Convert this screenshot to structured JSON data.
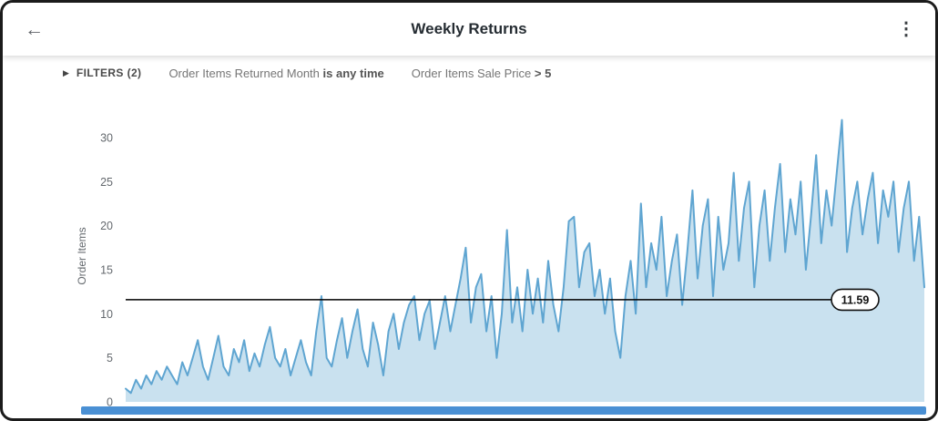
{
  "header": {
    "title": "Weekly Returns",
    "back_icon": "←",
    "menu_icon": "⋮"
  },
  "filters": {
    "expand_icon": "▶",
    "toggle_label": "FILTERS (2)",
    "clauses": [
      {
        "field": "Order Items Returned Month",
        "condition": "is any time"
      },
      {
        "field": "Order Items Sale Price",
        "condition": "> 5"
      }
    ]
  },
  "colors": {
    "scrollbar_blue": "#4a90d4",
    "header_text": "#262d33"
  },
  "chart_data": {
    "type": "area",
    "title": "Weekly Returns",
    "xlabel": "",
    "ylabel": "Order Items",
    "x_unit": "week-index",
    "yticks": [
      0,
      5,
      10,
      15,
      20,
      25,
      30
    ],
    "ylim": [
      0,
      33.3
    ],
    "grid": false,
    "legend": false,
    "area_color": "#c9e1ef",
    "line_color": "#5fa5d1",
    "reference_line": {
      "value": 11.59,
      "label": "11.59",
      "color": "#000000"
    },
    "values": [
      1.5,
      1,
      2.5,
      1.5,
      3,
      2,
      3.5,
      2.5,
      4,
      3,
      2,
      4.5,
      3,
      5,
      7,
      4,
      2.5,
      5,
      7.5,
      4,
      3,
      6,
      4.5,
      7,
      3.5,
      5.5,
      4,
      6.5,
      8.5,
      5,
      4,
      6,
      3,
      5,
      7,
      4.5,
      3,
      8,
      12,
      5,
      4,
      7,
      9.5,
      5,
      8,
      10.5,
      6,
      4,
      9,
      6.5,
      3,
      8,
      10,
      6,
      9,
      11,
      12,
      7,
      10,
      11.5,
      6,
      9,
      12,
      8,
      11,
      14,
      17.5,
      9,
      13,
      14.5,
      8,
      12,
      5,
      10,
      19.5,
      9,
      13,
      8,
      15,
      10,
      14,
      9,
      16,
      11,
      8,
      13,
      20.5,
      21,
      13,
      17,
      18,
      12,
      15,
      10,
      14,
      8,
      5,
      12,
      16,
      10,
      22.5,
      13,
      18,
      15,
      21,
      12,
      16,
      19,
      11,
      17,
      24,
      14,
      20,
      23,
      12,
      21,
      15,
      18,
      26,
      16,
      22,
      25,
      13,
      20,
      24,
      16,
      22,
      27,
      17,
      23,
      19,
      25,
      15,
      21,
      28,
      18,
      24,
      20,
      26,
      32,
      17,
      22,
      25,
      19,
      23,
      26,
      18,
      24,
      21,
      25,
      17,
      22,
      25,
      16,
      21,
      13
    ]
  }
}
